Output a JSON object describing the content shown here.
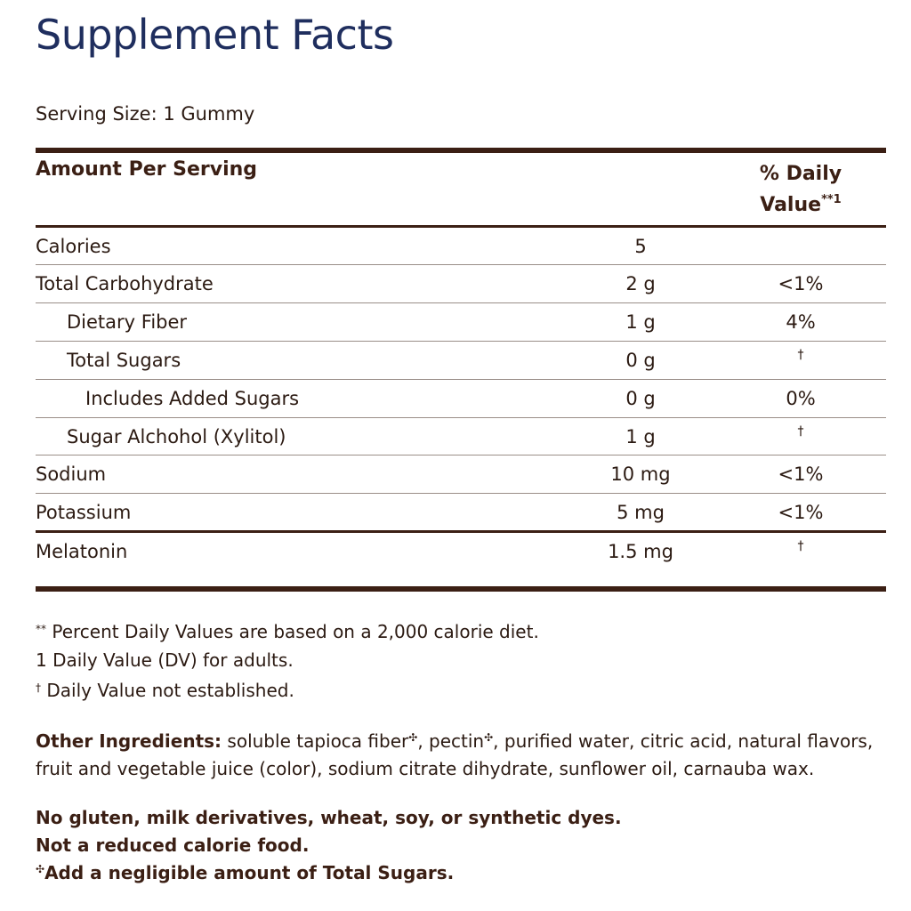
{
  "title": "Supplement Facts",
  "serving_size": "Serving Size: 1 Gummy",
  "header": {
    "amount_per_serving": "Amount Per Serving",
    "dv_line1": "% Daily",
    "dv_line2": "Value",
    "dv_mark": "**1"
  },
  "rows": [
    {
      "name": "Calories",
      "amount": "5",
      "dv": ""
    },
    {
      "name": "Total Carbohydrate",
      "amount": "2 g",
      "dv": "<1%"
    },
    {
      "name": "Dietary Fiber",
      "amount": "1 g",
      "dv": "4%"
    },
    {
      "name": "Total Sugars",
      "amount": "0 g",
      "dv": "†"
    },
    {
      "name": "Includes Added Sugars",
      "amount": "0 g",
      "dv": "0%"
    },
    {
      "name": "Sugar Alchohol (Xylitol)",
      "amount": "1 g",
      "dv": "†"
    },
    {
      "name": "Sodium",
      "amount": "10 mg",
      "dv": "<1%"
    },
    {
      "name": "Potassium",
      "amount": "5 mg",
      "dv": "<1%"
    },
    {
      "name": "Melatonin",
      "amount": "1.5 mg",
      "dv": "†"
    }
  ],
  "footnotes": {
    "dv_mark": "**",
    "dv_note": "Percent Daily Values are based on a 2,000 calorie diet.",
    "adult_note": "1 Daily Value (DV) for adults.",
    "dagger_mark": "†",
    "dagger_note": "Daily Value not established."
  },
  "ingredients": {
    "label": "Other Ingredients:",
    "part1": "soluble tapioca fiber",
    "mark": "✣",
    "part2": ", pectin",
    "part3": ", purified water, citric acid, natural flavors, fruit and vegetable juice (color), sodium citrate dihydrate, sunflower oil, carnauba wax."
  },
  "statements": {
    "free_from": "No gluten, milk derivatives, wheat, soy, or synthetic dyes.",
    "not_reduced": "Not a reduced calorie food.",
    "sugar_mark": "✣",
    "sugar_note": "Add a negligible amount of Total Sugars."
  },
  "colors": {
    "title": "#1f2e5e",
    "rules": "#3b1f14",
    "text": "#2b1a12"
  }
}
